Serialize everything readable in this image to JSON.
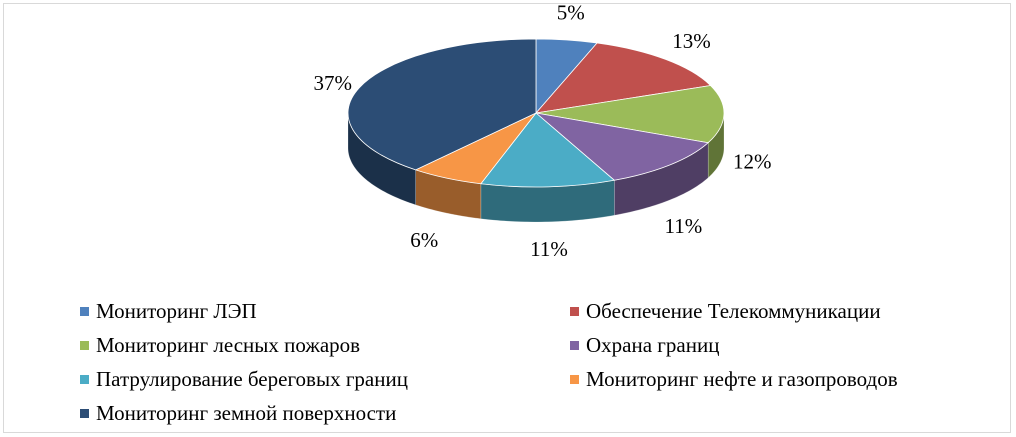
{
  "chart_data": {
    "type": "pie",
    "style": "3d",
    "categories": [
      "Мониторинг ЛЭП",
      "Обеспечение Телекоммуникации",
      "Мониторинг лесных пожаров",
      "Охрана границ",
      "Патрулирование береговых границ",
      "Мониторинг нефте и газопроводов",
      "Мониторинг земной поверхности"
    ],
    "values": [
      5,
      13,
      12,
      11,
      11,
      6,
      37
    ],
    "labels": [
      "5%",
      "13%",
      "12%",
      "11%",
      "11%",
      "6%",
      "37%"
    ],
    "colors": [
      "#4f81bd",
      "#c0504d",
      "#9bbb59",
      "#8064a2",
      "#4bacc6",
      "#f79646",
      "#2c4d75"
    ],
    "legend_position": "bottom",
    "title": ""
  }
}
